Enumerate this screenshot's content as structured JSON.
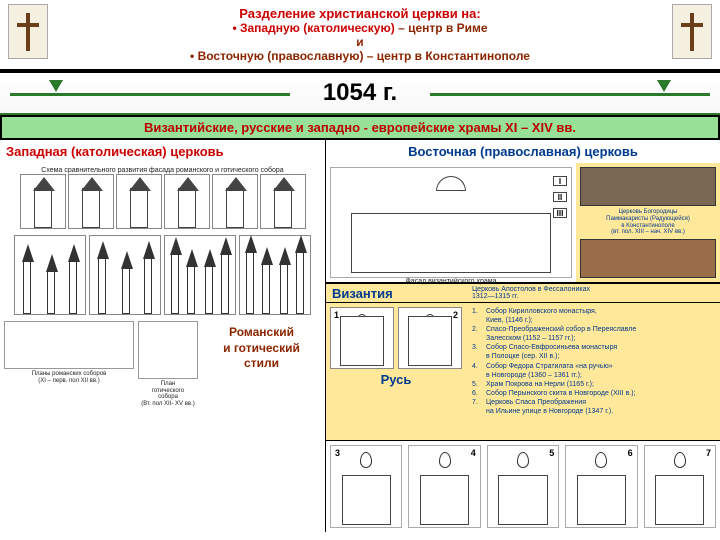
{
  "header": {
    "title": "Разделение христианской церкви на:",
    "line1_prefix": "• ",
    "line1_main": "Западную (католическую)",
    "line1_suffix": " – центр в Риме",
    "line_and": "и",
    "line2_prefix": "• ",
    "line2_main": "Восточную (православную)",
    "line2_suffix": " – центр в Константинополе"
  },
  "year": "1054 г.",
  "green_band": "Византийские, русские и западно - европейские храмы XI – XIV вв.",
  "left": {
    "header": "Западная (католическая) церковь",
    "caption_top": "Схема сравнительного развития фасада романского и готического собора",
    "plan1_caption": "Планы романских соборов\n(XI – перв. пол XII вв.)",
    "plan2_caption": "План\nготического\nсобора\n(Вт. пол XII- XV вв.)",
    "style_label": "Романский\nи готический\nстили"
  },
  "right": {
    "header": "Восточная (православная) церковь",
    "byz_caption": "Фасад византийского храма",
    "roman_nums": [
      "I",
      "II",
      "III"
    ],
    "photo1_caption": "Церковь Богородицы\nПаммакаристы (Радующейся)\nв Константинополе\n(вт. пол. XIII – нач. XIV вв.)",
    "byz_label": "Византия",
    "byz_sub": "Церковь Апостолов в Фессалониках\n1312—1315 гг.",
    "rus_label": "Русь",
    "rus_nums_top": [
      "1",
      "2"
    ],
    "rus_list": [
      "Собор Кирилловского монастыря,\nКиев, (1146 г.);",
      "Спасо-Преображенский собор в Переяславле\nЗалесском (1152 – 1157 гг.);",
      "Собор Спасо-Евфросиньева монастыря\nв Полоцке (сер. XII в.);",
      "Собор Федора Стратилата «на ручью»\nв Новгороде (1360 – 1361 гг.);",
      "Храм Покрова на Нерли (1165 г.);",
      "Собор Перынского скита в Новгороде (XIII в.);",
      "Церковь Спаса Преображения\nна Ильине улице в Новгороде (1347 г.)."
    ],
    "rus_nums_bottom": [
      "3",
      "4",
      "5",
      "6",
      "7"
    ]
  },
  "colors": {
    "red": "#c00000",
    "brown": "#8b2500",
    "green_band": "#98e098",
    "blue_text": "#003a8c",
    "yellow_bg": "#ffe89a",
    "arrow_green": "#2a7a2a"
  }
}
